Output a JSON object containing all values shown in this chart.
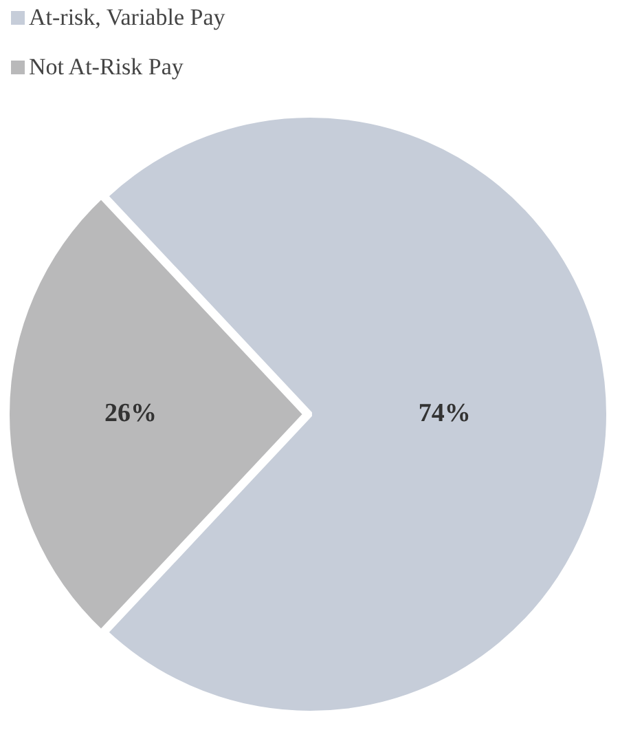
{
  "chart_data": {
    "type": "pie",
    "categories": [
      "At-risk, Variable Pay",
      "Not At-Risk Pay"
    ],
    "values": [
      74,
      26
    ],
    "colors": [
      "#c6cdd9",
      "#b9b9ba"
    ],
    "value_labels": [
      "74%",
      "26%"
    ],
    "legend": "top left"
  }
}
